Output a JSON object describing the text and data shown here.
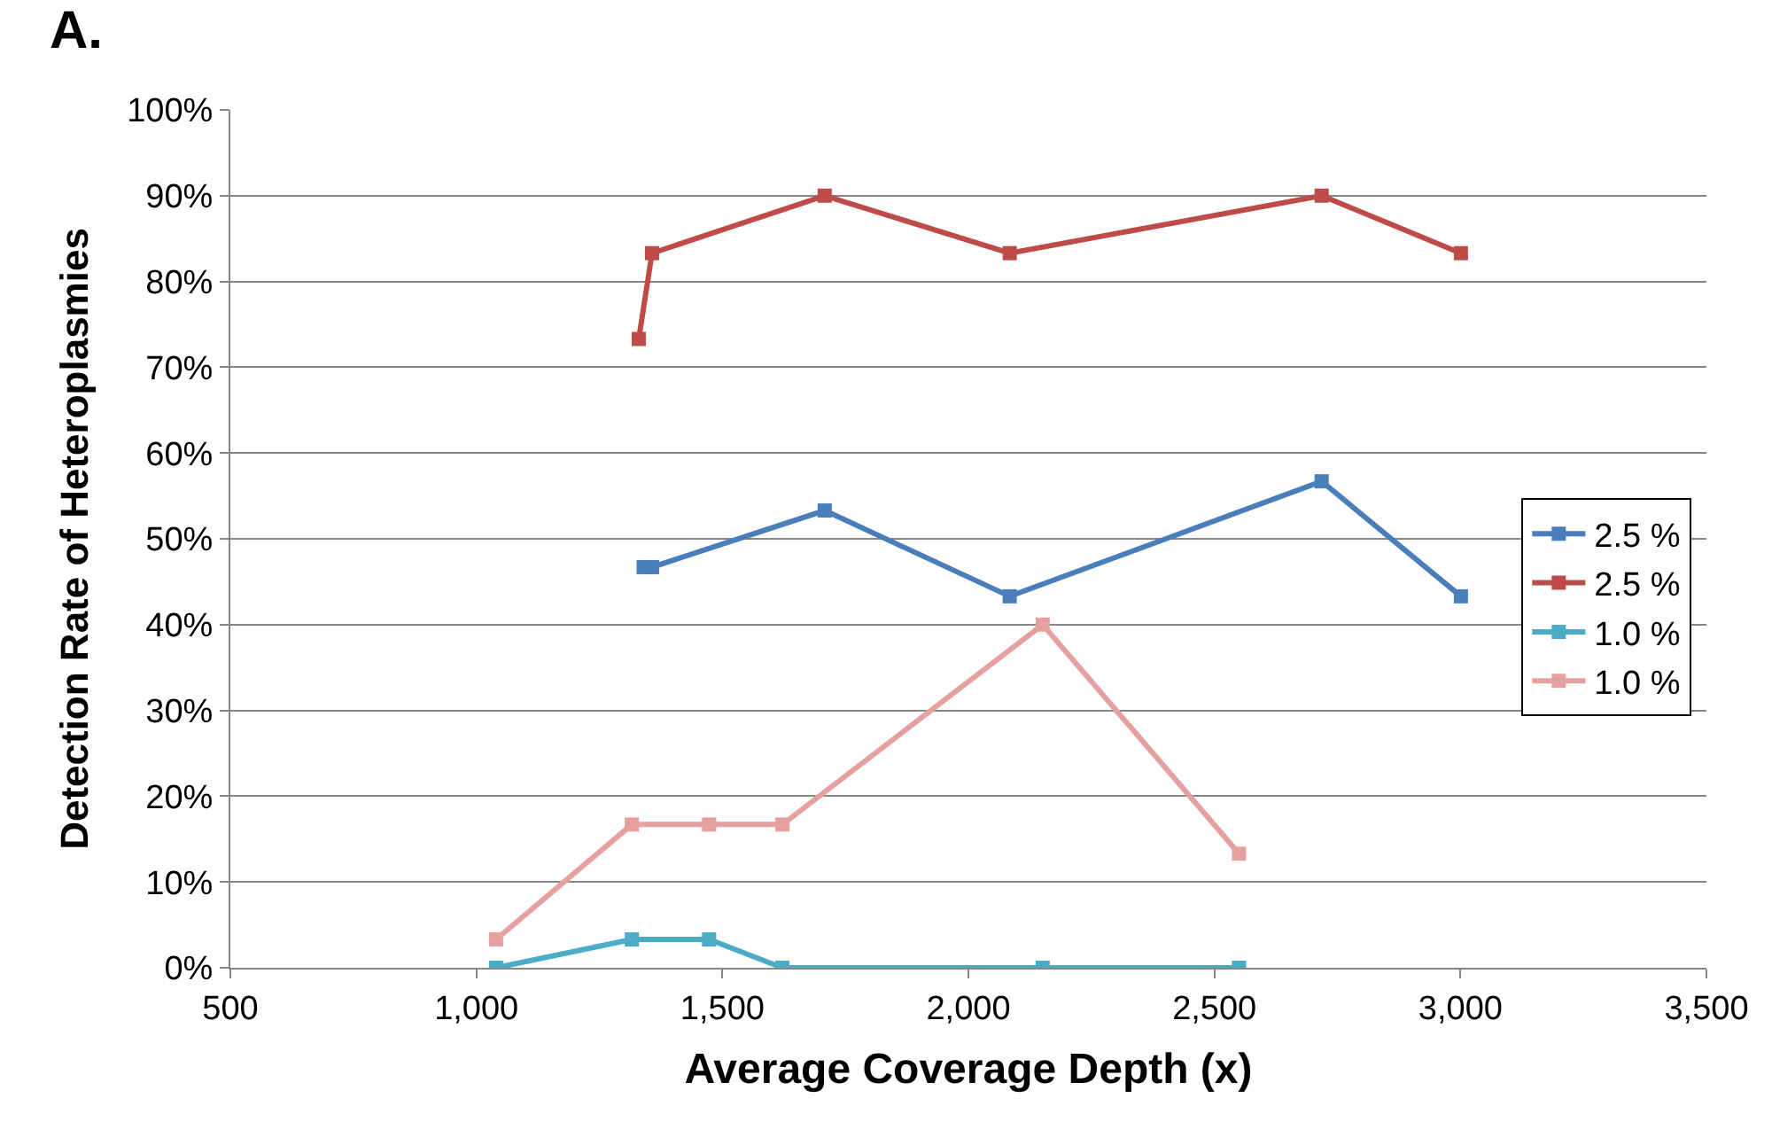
{
  "chart_data": {
    "type": "line",
    "xlabel": "Average Coverage Depth (x)",
    "ylabel": "Detection Rate of Heteroplasmies",
    "annotations": [
      "A."
    ],
    "xlim": [
      500,
      3500
    ],
    "xticks": [
      {
        "value": 500,
        "label": "500"
      },
      {
        "value": 1000,
        "label": "1,000"
      },
      {
        "value": 1500,
        "label": "1,500"
      },
      {
        "value": 2000,
        "label": "2,000"
      },
      {
        "value": 2500,
        "label": "2,500"
      },
      {
        "value": 3000,
        "label": "3,000"
      },
      {
        "value": 3500,
        "label": "3,500"
      }
    ],
    "ylim": [
      0,
      100
    ],
    "yticks": [
      {
        "value": 0,
        "label": "0%"
      },
      {
        "value": 10,
        "label": "10%"
      },
      {
        "value": 20,
        "label": "20%"
      },
      {
        "value": 30,
        "label": "30%"
      },
      {
        "value": 40,
        "label": "40%"
      },
      {
        "value": 50,
        "label": "50%"
      },
      {
        "value": 60,
        "label": "60%"
      },
      {
        "value": 70,
        "label": "70%"
      },
      {
        "value": 80,
        "label": "80%"
      },
      {
        "value": 90,
        "label": "90%"
      },
      {
        "value": 100,
        "label": "100%"
      }
    ],
    "grid": "y",
    "legend": "right",
    "marker": "square",
    "line_style": "solid",
    "series": [
      {
        "name": "2.5 %",
        "color": "#4a7ebb",
        "x": [
          1340,
          1357,
          1708,
          2084,
          2718,
          3001
        ],
        "values": [
          46.7,
          46.7,
          53.3,
          43.3,
          56.7,
          43.3
        ]
      },
      {
        "name": "2.5 %",
        "color": "#be4b48",
        "x": [
          1330,
          1357,
          1708,
          2084,
          2718,
          3001
        ],
        "values": [
          73.3,
          83.3,
          90,
          83.3,
          90,
          83.3
        ]
      },
      {
        "name": "1.0 %",
        "color": "#4bacc6",
        "x": [
          1040,
          1316,
          1473,
          1622,
          2151,
          2550
        ],
        "values": [
          0,
          3.3,
          3.3,
          0,
          0,
          0
        ]
      },
      {
        "name": "1.0 %",
        "color": "#e6a0a0",
        "x": [
          1040,
          1316,
          1473,
          1622,
          2151,
          2550
        ],
        "values": [
          3.3,
          16.7,
          16.7,
          16.7,
          40,
          13.3
        ]
      }
    ]
  }
}
